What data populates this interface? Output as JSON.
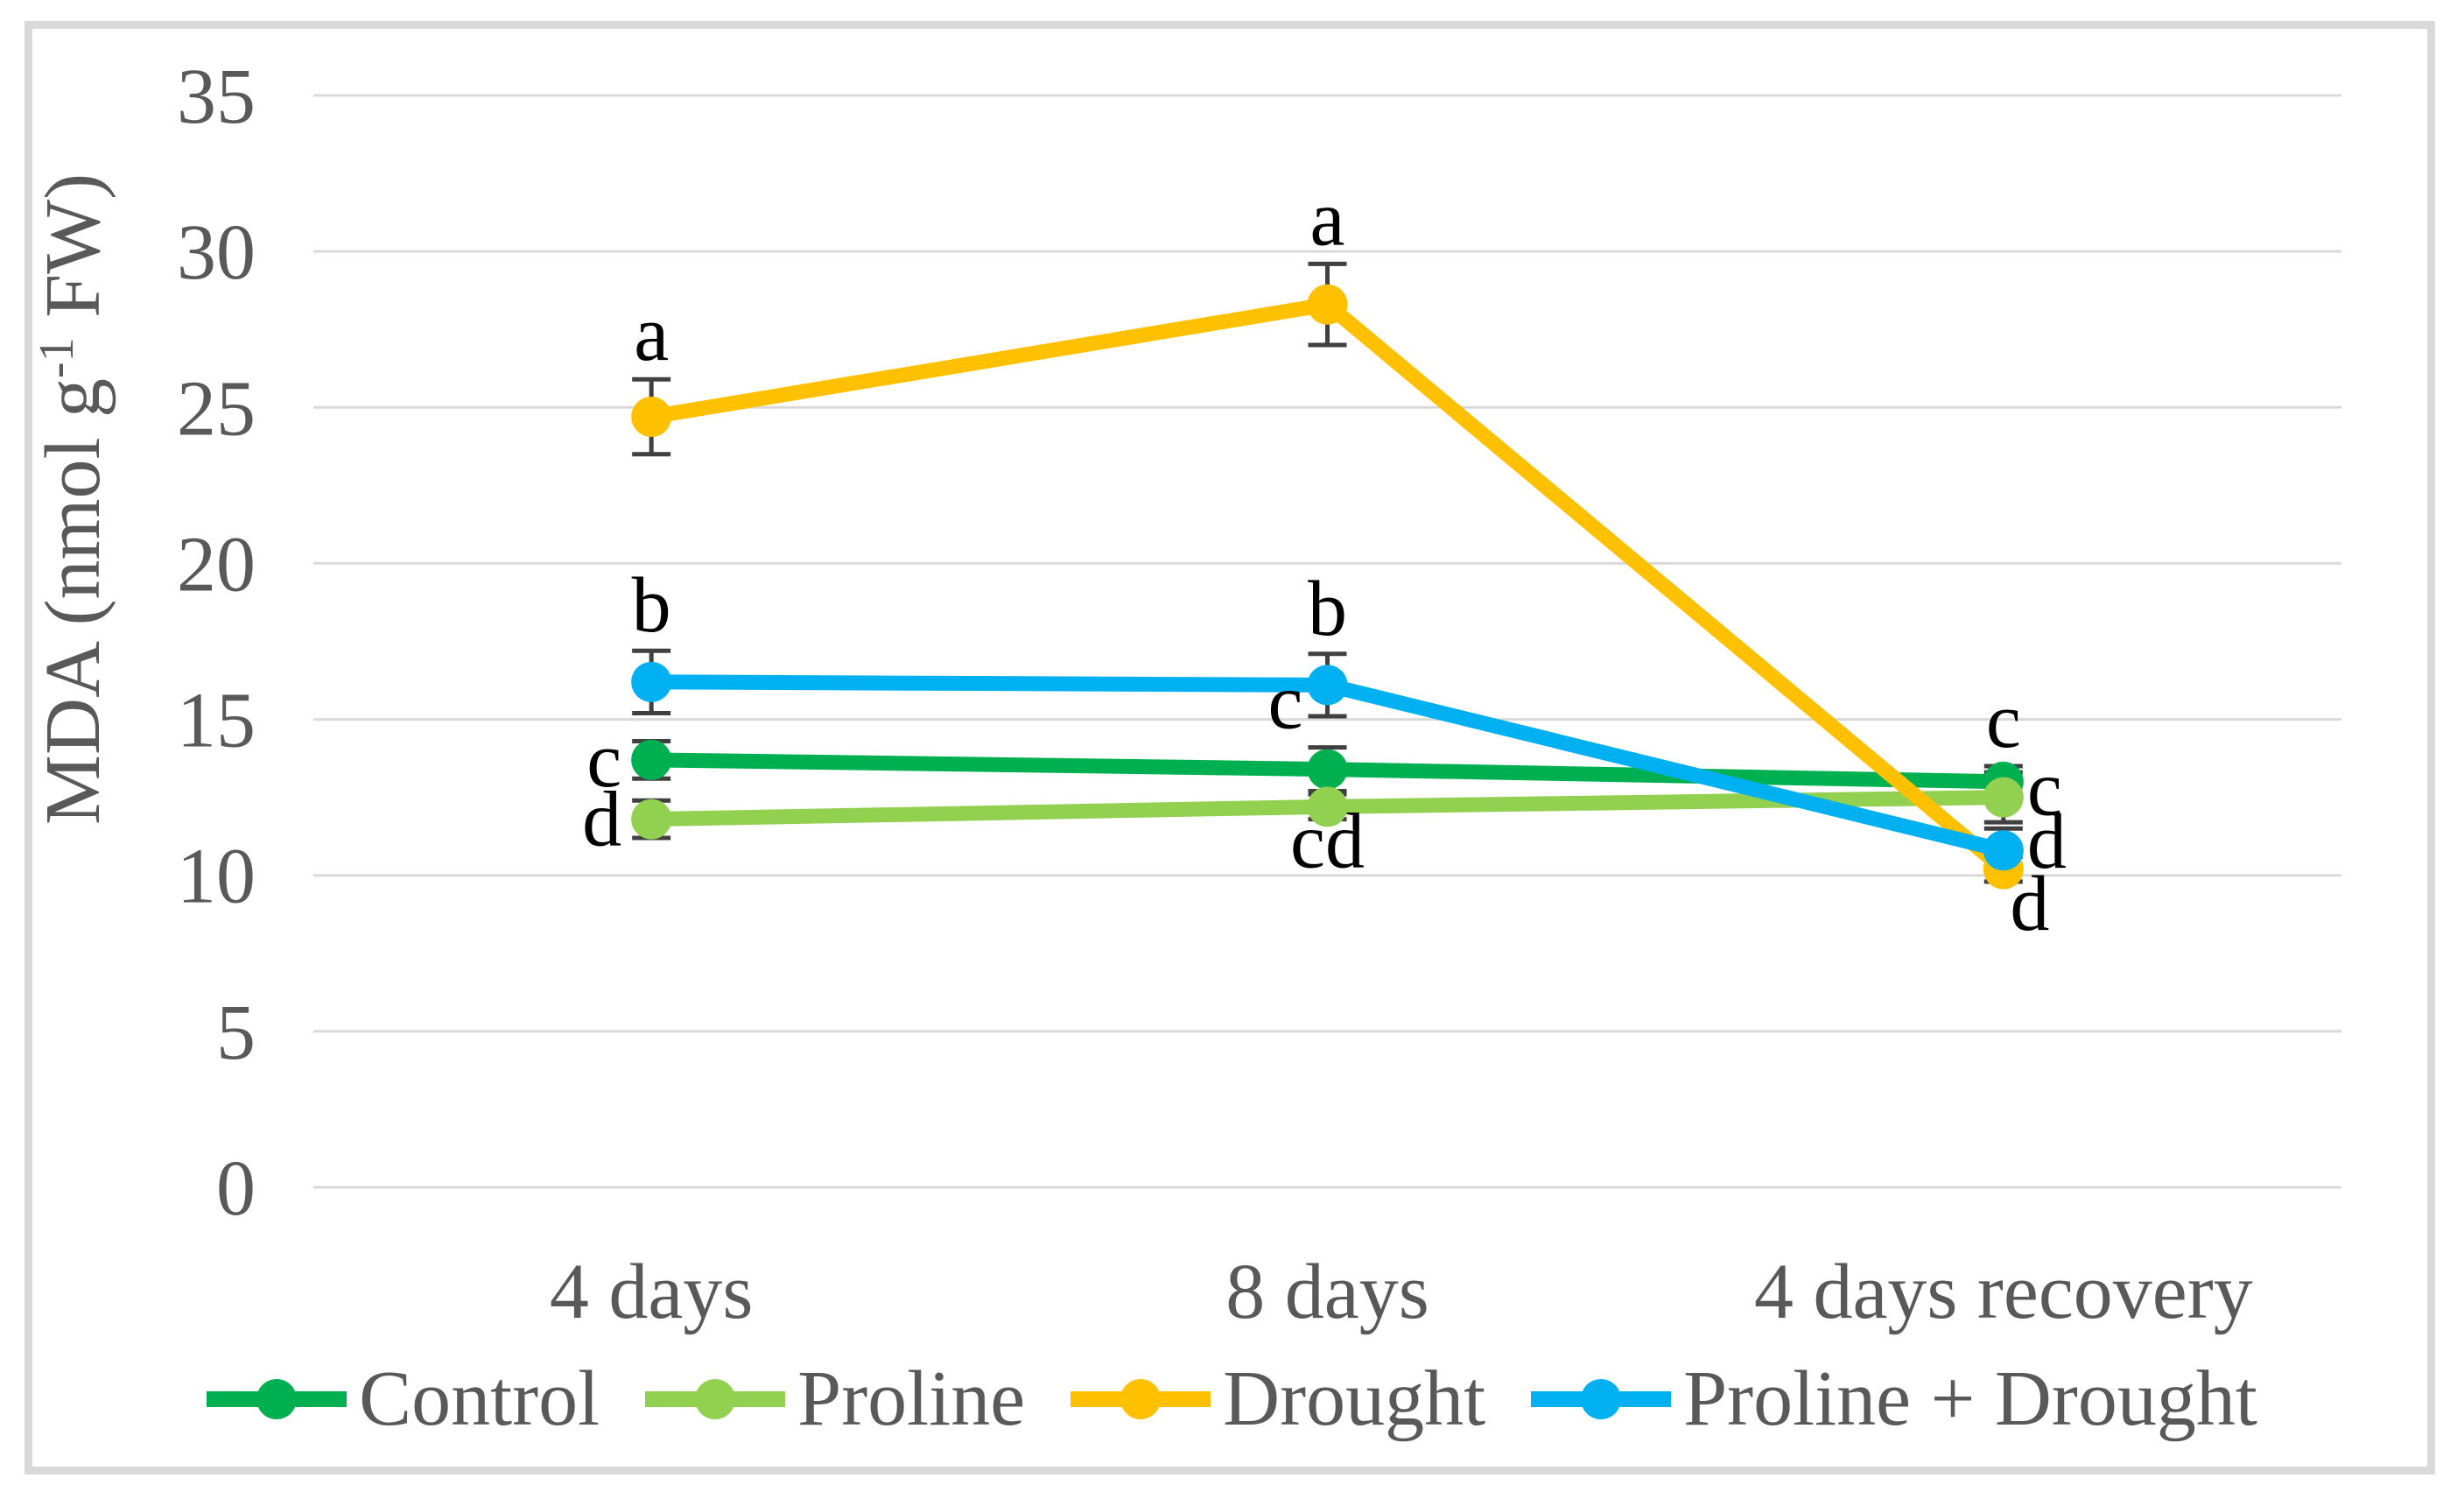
{
  "figure": {
    "background": "#FFFFFF",
    "frame_color": "#D9D9D9"
  },
  "chart_data": {
    "type": "line",
    "title": "",
    "xlabel": "",
    "ylabel": "MDA (nmol g⁻¹ FW)",
    "ylabel_parts": {
      "pre": "MDA (nmol g",
      "sup": "-1",
      "post": " FW)"
    },
    "categories": [
      "4 days",
      "8 days",
      "4 days recovery"
    ],
    "ylim": [
      0,
      35
    ],
    "ytick_step": 5,
    "yticks": [
      "0",
      "5",
      "10",
      "15",
      "20",
      "25",
      "30",
      "35"
    ],
    "grid": "horizontal",
    "legend_position": "bottom",
    "axis_text_color": "#595959",
    "gridline_color": "#D9D9D9",
    "error_bar_color": "#404040",
    "letter_color": "#000000",
    "series": [
      {
        "name": "Control",
        "color": "#00B050",
        "values": [
          13.7,
          13.4,
          13.0
        ],
        "errors": [
          0.6,
          0.7,
          0.5
        ],
        "letters": [
          {
            "text": "c",
            "placement": "left"
          },
          {
            "text": "c",
            "placement": "above-left"
          },
          {
            "text": "c",
            "placement": "above"
          }
        ]
      },
      {
        "name": "Proline",
        "color": "#92D050",
        "values": [
          11.8,
          12.2,
          12.5
        ],
        "errors": [
          0.6,
          0.4,
          0.8
        ],
        "letters": [
          {
            "text": "d",
            "placement": "left"
          },
          {
            "text": "cd",
            "placement": "below"
          },
          {
            "text": "c",
            "placement": "right"
          }
        ]
      },
      {
        "name": "Drought",
        "color": "#FFC000",
        "values": [
          24.7,
          28.3,
          10.2
        ],
        "errors": [
          1.2,
          1.3,
          0.4
        ],
        "letters": [
          {
            "text": "a",
            "placement": "above"
          },
          {
            "text": "a",
            "placement": "above"
          },
          {
            "text": "d",
            "placement": "below-right"
          }
        ]
      },
      {
        "name": "Proline + Drought",
        "color": "#00B0F0",
        "values": [
          16.2,
          16.1,
          10.8
        ],
        "errors": [
          1.0,
          1.0,
          0.7
        ],
        "letters": [
          {
            "text": "b",
            "placement": "above"
          },
          {
            "text": "b",
            "placement": "above"
          },
          {
            "text": "d",
            "placement": "right"
          }
        ]
      }
    ]
  }
}
